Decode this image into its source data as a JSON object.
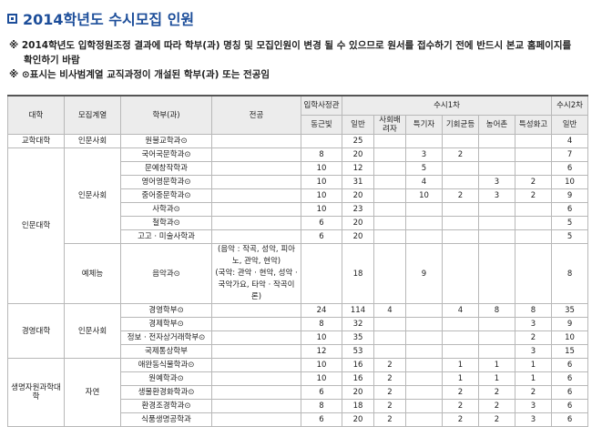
{
  "header": {
    "title": "2014학년도 수시모집 인원"
  },
  "notes": [
    "※ 2014학년도 입학정원조정 결과에 따라 학부(과) 명칭 및 모집인원이 변경 될 수 있으므로 원서를 접수하기 전에 반드시 본교 홈페이지를 확인하기 바람",
    "※ ⊙표시는 비사범계열 교직과정이 개설된 학부(과) 또는 전공임"
  ],
  "table": {
    "header_top": [
      "대학",
      "모집계열",
      "학부(과)",
      "전공",
      "입학사정관",
      "수시1차",
      "수시2차"
    ],
    "header_sub": [
      "동근빛",
      "일반",
      "사회배려자",
      "특기자",
      "기회균등",
      "농어촌",
      "특성화고",
      "일반"
    ],
    "groups": [
      {
        "college": "교학대학",
        "tracks": [
          {
            "name": "인문사회",
            "rows": [
              [
                "원불교학과⊙",
                null,
                null,
                25,
                null,
                null,
                null,
                null,
                null,
                4
              ]
            ]
          }
        ]
      },
      {
        "college": "인문대학",
        "tracks": [
          {
            "name": "인문사회",
            "rows": [
              [
                "국어국문학과⊙",
                null,
                8,
                20,
                null,
                3,
                2,
                null,
                null,
                7
              ],
              [
                "문예창작학과",
                null,
                10,
                12,
                null,
                5,
                null,
                null,
                null,
                6
              ],
              [
                "영어영문학과⊙",
                null,
                10,
                31,
                null,
                4,
                null,
                3,
                2,
                10
              ],
              [
                "중어중문학과⊙",
                null,
                10,
                20,
                null,
                10,
                2,
                3,
                2,
                9
              ],
              [
                "사학과⊙",
                null,
                10,
                23,
                null,
                null,
                null,
                null,
                null,
                6
              ],
              [
                "철학과⊙",
                null,
                6,
                20,
                null,
                null,
                null,
                null,
                null,
                5
              ],
              [
                "고고 · 미술사학과",
                null,
                6,
                20,
                null,
                null,
                null,
                null,
                null,
                5
              ]
            ]
          },
          {
            "name": "예체능",
            "rows": [
              [
                "음악과⊙",
                "(음악 : 작곡, 성악, 피아노, 관악, 현악)\n(국악: 관악 · 현악, 성악 · 국악가요, 타악 · 작곡이론)",
                null,
                18,
                null,
                9,
                null,
                null,
                null,
                8
              ]
            ]
          }
        ]
      },
      {
        "college": "경영대학",
        "tracks": [
          {
            "name": "인문사회",
            "rows": [
              [
                "경영학부⊙",
                null,
                24,
                114,
                4,
                null,
                4,
                8,
                8,
                35
              ],
              [
                "경제학부⊙",
                null,
                8,
                32,
                null,
                null,
                null,
                null,
                3,
                9
              ],
              [
                "정보 · 전자상거래학부⊙",
                null,
                10,
                35,
                null,
                null,
                null,
                null,
                2,
                10
              ],
              [
                "국제통상학부",
                null,
                12,
                53,
                null,
                null,
                null,
                null,
                3,
                15
              ]
            ]
          }
        ]
      },
      {
        "college": "생명자원과학대학",
        "tracks": [
          {
            "name": "자연",
            "rows": [
              [
                "애완동식물학과⊙",
                null,
                10,
                16,
                2,
                null,
                1,
                1,
                1,
                6
              ],
              [
                "원예학과⊙",
                null,
                10,
                16,
                2,
                null,
                1,
                1,
                1,
                6
              ],
              [
                "생물환경화학과⊙",
                null,
                6,
                20,
                2,
                null,
                2,
                2,
                2,
                6
              ],
              [
                "환경조경학과⊙",
                null,
                8,
                18,
                2,
                null,
                2,
                2,
                3,
                6
              ],
              [
                "식품생명공학과",
                null,
                6,
                20,
                2,
                null,
                2,
                2,
                3,
                6
              ]
            ]
          }
        ]
      }
    ]
  }
}
